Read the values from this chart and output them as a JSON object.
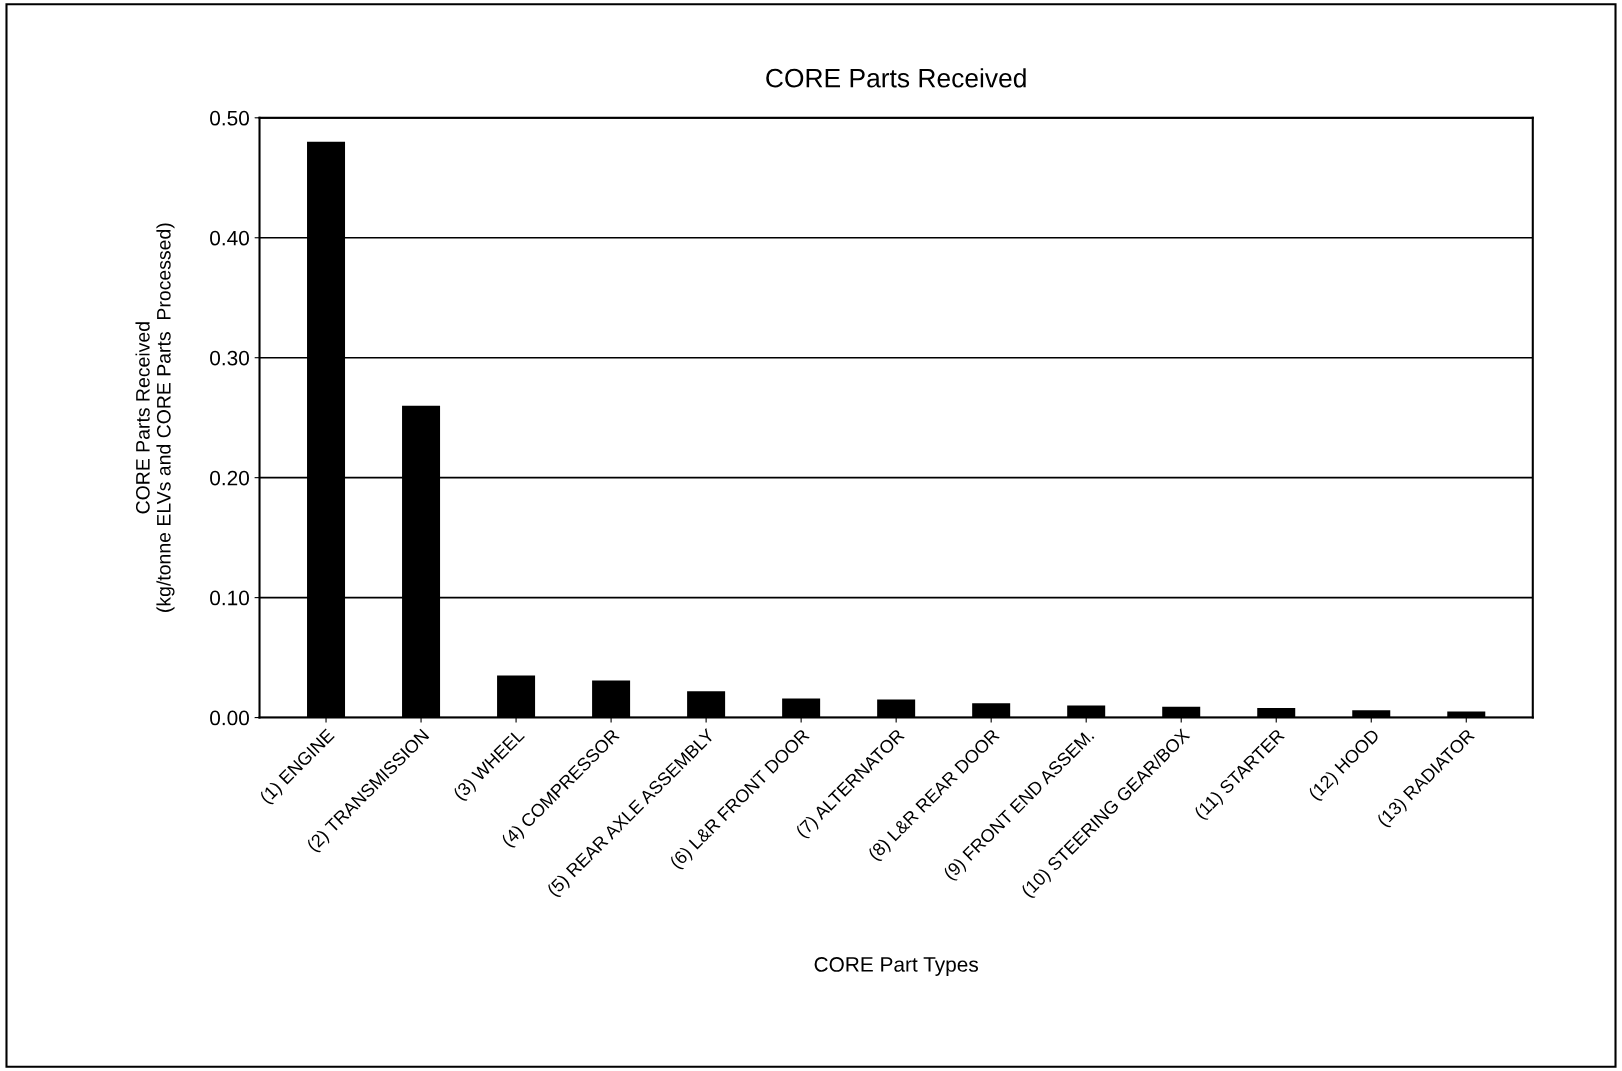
{
  "chart_data": {
    "type": "bar",
    "title": "CORE Parts Received",
    "xlabel": "CORE Part Types",
    "ylabel": "CORE Parts Received\n(kg/tonne ELVs and CORE Parts  Processed)",
    "categories": [
      "(1) ENGINE",
      "(2) TRANSMISSION",
      "(3) WHEEL",
      "(4) COMPRESSOR",
      "(5) REAR AXLE ASSEMBLY",
      "(6) L&R FRONT DOOR",
      "(7) ALTERNATOR",
      "(8) L&R REAR DOOR",
      "(9) FRONT END ASSEM.",
      "(10) STEERING GEAR/BOX",
      "(11) STARTER",
      "(12) HOOD",
      "(13) RADIATOR"
    ],
    "values": [
      0.48,
      0.26,
      0.035,
      0.031,
      0.022,
      0.016,
      0.015,
      0.012,
      0.01,
      0.009,
      0.008,
      0.006,
      0.005
    ],
    "color": "#000000",
    "ylim": [
      0,
      0.5
    ],
    "yticks": [
      {
        "value": 0,
        "label": "0.00"
      },
      {
        "value": 0.1,
        "label": "0.10"
      },
      {
        "value": 0.2,
        "label": "0.20"
      },
      {
        "value": 0.3,
        "label": "0.30"
      },
      {
        "value": 0.4,
        "label": "0.40"
      },
      {
        "value": 0.5,
        "label": "0.50"
      }
    ],
    "grid": "y",
    "legend": false
  }
}
